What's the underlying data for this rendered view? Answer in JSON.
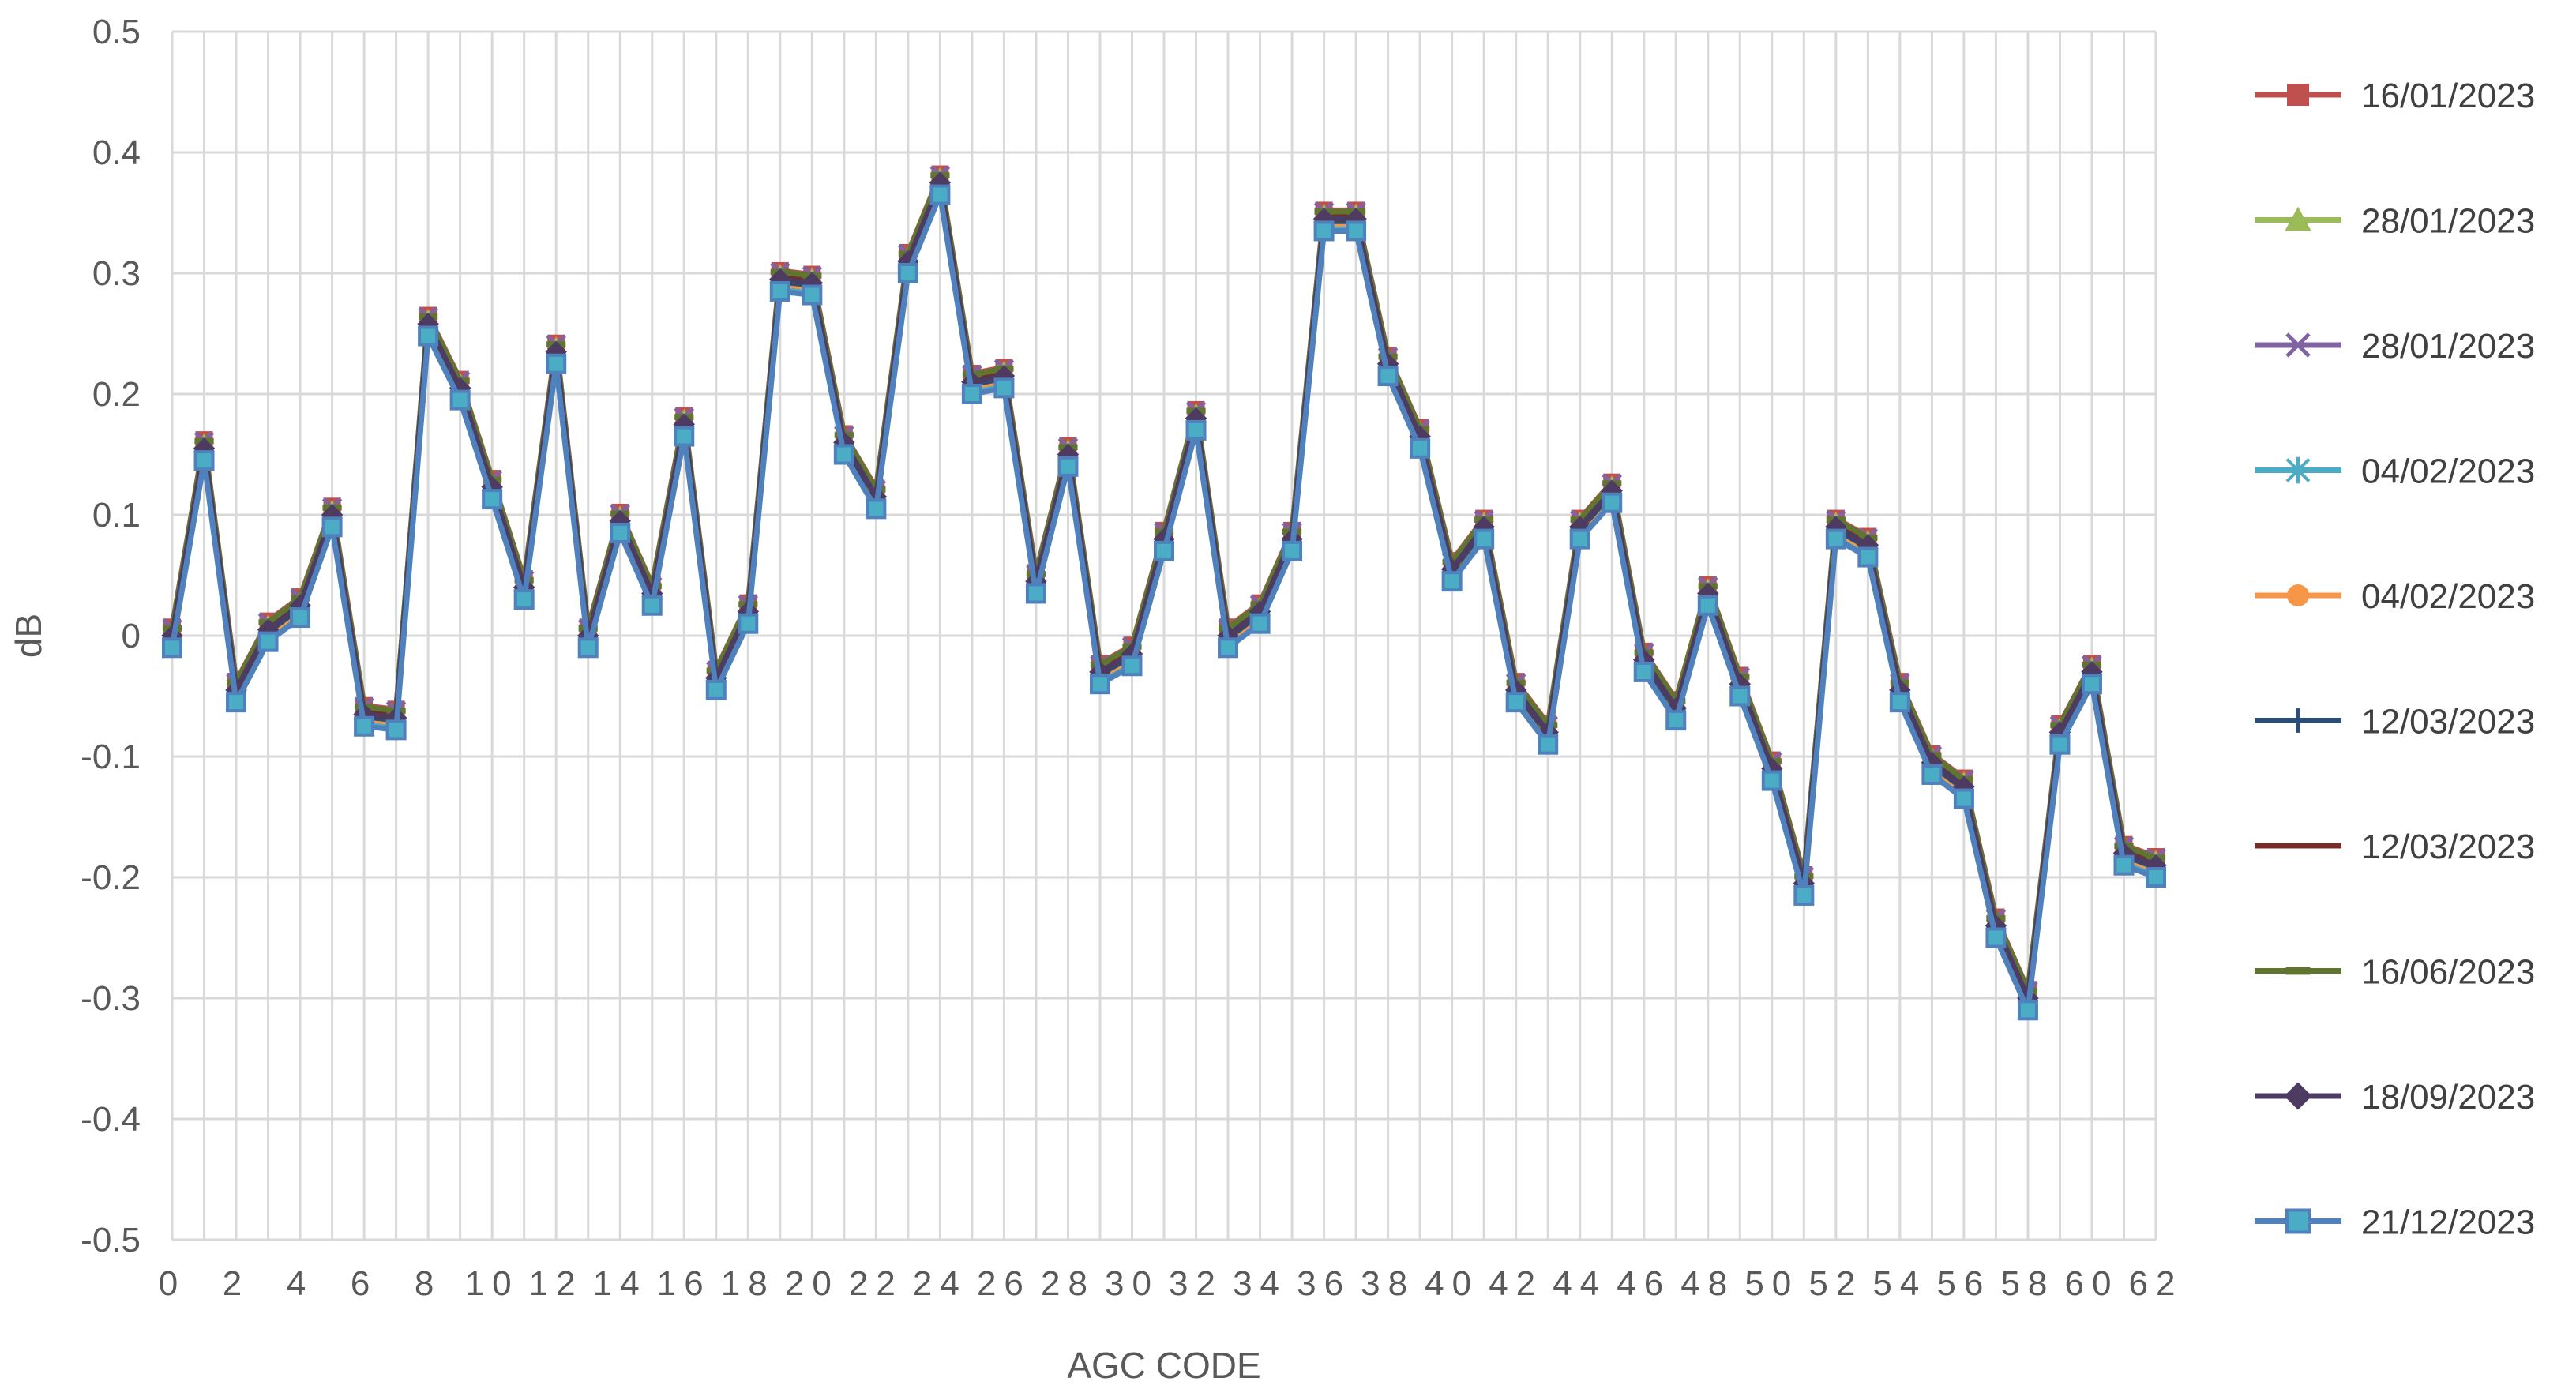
{
  "chart_data": {
    "type": "line",
    "title": "",
    "xlabel": "AGC CODE",
    "ylabel": "dB",
    "xlim": [
      0,
      62
    ],
    "ylim": [
      -0.5,
      0.5
    ],
    "yticks": [
      0.5,
      0.4,
      0.3,
      0.2,
      0.1,
      0,
      -0.1,
      -0.2,
      -0.3,
      -0.4,
      -0.5
    ],
    "ytick_labels": [
      "0.5",
      "0.4",
      "0.3",
      "0.2",
      "0.1",
      "0",
      "-0.1",
      "-0.2",
      "-0.3",
      "-0.4",
      "-0.5"
    ],
    "xticks": [
      0,
      2,
      4,
      6,
      8,
      10,
      12,
      14,
      16,
      18,
      20,
      22,
      24,
      26,
      28,
      30,
      32,
      34,
      36,
      38,
      40,
      42,
      44,
      46,
      48,
      50,
      52,
      54,
      56,
      58,
      60,
      62
    ],
    "xtick_labels": [
      "0",
      "2",
      "4",
      "6",
      "8",
      "10",
      "12",
      "14",
      "16",
      "18",
      "20",
      "22",
      "24",
      "26",
      "28",
      "30",
      "32",
      "34",
      "36",
      "38",
      "40",
      "42",
      "44",
      "46",
      "48",
      "50",
      "52",
      "54",
      "56",
      "58",
      "60",
      "62"
    ],
    "grid": true,
    "legend_position": "right",
    "base_values": [
      0,
      0.155,
      -0.045,
      0.005,
      0.025,
      0.1,
      -0.065,
      -0.068,
      0.258,
      0.205,
      0.123,
      0.04,
      0.235,
      0,
      0.095,
      0.035,
      0.175,
      -0.035,
      0.02,
      0.295,
      0.292,
      0.16,
      0.115,
      0.31,
      0.375,
      0.21,
      0.215,
      0.045,
      0.15,
      -0.03,
      -0.015,
      0.08,
      0.18,
      0,
      0.02,
      0.08,
      0.345,
      0.345,
      0.225,
      0.165,
      0.055,
      0.09,
      -0.045,
      -0.08,
      0.09,
      0.12,
      -0.02,
      -0.06,
      0.035,
      -0.04,
      -0.11,
      -0.205,
      0.09,
      0.075,
      -0.045,
      -0.105,
      -0.125,
      -0.24,
      -0.3,
      -0.08,
      -0.03,
      -0.18,
      -0.19
    ],
    "series": [
      {
        "name": "16/01/2023",
        "color": "#c0504d",
        "marker": "square",
        "offset": 0.007
      },
      {
        "name": "28/01/2023",
        "color": "#9bbb59",
        "marker": "triangle",
        "offset": 0.004
      },
      {
        "name": "28/01/2023",
        "color": "#8064a2",
        "marker": "x",
        "offset": 0.006
      },
      {
        "name": "04/02/2023",
        "color": "#4bacc6",
        "marker": "star",
        "offset": -0.008
      },
      {
        "name": "04/02/2023",
        "color": "#f79646",
        "marker": "circle",
        "offset": -0.004
      },
      {
        "name": "12/03/2023",
        "color": "#2c4d75",
        "marker": "plus",
        "offset": -0.002
      },
      {
        "name": "12/03/2023",
        "color": "#772c2a",
        "marker": "none",
        "offset": 0.002
      },
      {
        "name": "16/06/2023",
        "color": "#5f7530",
        "marker": "dash",
        "offset": 0.006
      },
      {
        "name": "18/09/2023",
        "color": "#4d3b62",
        "marker": "diamond",
        "offset": 0.0
      },
      {
        "name": "21/12/2023",
        "color": "#4f81bd",
        "marker": "square-teal",
        "offset": -0.01
      }
    ]
  }
}
